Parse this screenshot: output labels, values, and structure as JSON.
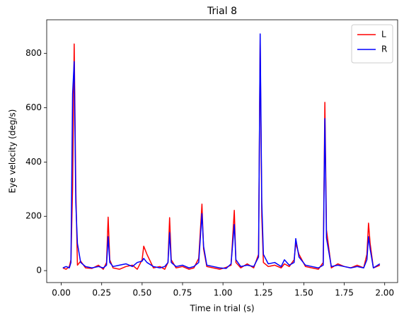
{
  "chart_data": {
    "type": "line",
    "title": "Trial 8",
    "x_label": "Time in trial (s)",
    "y_label": "Eye velocity (deg/s)",
    "x": [
      0.01,
      0.03,
      0.05,
      0.06,
      0.07,
      0.08,
      0.09,
      0.1,
      0.12,
      0.15,
      0.19,
      0.23,
      0.26,
      0.28,
      0.29,
      0.3,
      0.32,
      0.36,
      0.4,
      0.44,
      0.47,
      0.5,
      0.51,
      0.53,
      0.57,
      0.61,
      0.64,
      0.66,
      0.67,
      0.68,
      0.71,
      0.75,
      0.79,
      0.82,
      0.85,
      0.87,
      0.88,
      0.9,
      0.94,
      0.98,
      1.02,
      1.05,
      1.07,
      1.08,
      1.11,
      1.15,
      1.19,
      1.22,
      1.23,
      1.24,
      1.25,
      1.28,
      1.32,
      1.36,
      1.38,
      1.41,
      1.44,
      1.45,
      1.47,
      1.51,
      1.55,
      1.59,
      1.62,
      1.63,
      1.64,
      1.67,
      1.71,
      1.75,
      1.79,
      1.83,
      1.87,
      1.89,
      1.9,
      1.91,
      1.93,
      1.97
    ],
    "series": [
      {
        "name": "L",
        "color": "#ff0000",
        "values": [
          10,
          5,
          15,
          40,
          300,
          835,
          300,
          20,
          35,
          10,
          8,
          20,
          5,
          30,
          197,
          40,
          10,
          5,
          15,
          20,
          5,
          40,
          90,
          60,
          10,
          15,
          5,
          30,
          195,
          40,
          10,
          15,
          5,
          10,
          45,
          245,
          80,
          15,
          10,
          5,
          12,
          20,
          222,
          30,
          10,
          25,
          10,
          60,
          850,
          200,
          30,
          15,
          20,
          10,
          25,
          15,
          40,
          100,
          60,
          15,
          10,
          5,
          30,
          620,
          150,
          10,
          25,
          15,
          10,
          20,
          10,
          60,
          175,
          100,
          10,
          20
        ]
      },
      {
        "name": "R",
        "color": "#0000ff",
        "values": [
          10,
          15,
          10,
          30,
          650,
          770,
          250,
          100,
          30,
          15,
          10,
          15,
          10,
          20,
          125,
          30,
          15,
          20,
          25,
          15,
          30,
          35,
          45,
          30,
          15,
          10,
          15,
          30,
          140,
          30,
          15,
          20,
          10,
          15,
          30,
          210,
          90,
          20,
          15,
          10,
          8,
          25,
          170,
          40,
          15,
          20,
          15,
          50,
          872,
          250,
          60,
          25,
          30,
          15,
          40,
          20,
          30,
          118,
          50,
          20,
          15,
          10,
          20,
          560,
          120,
          15,
          20,
          15,
          10,
          15,
          10,
          40,
          125,
          80,
          10,
          25
        ]
      }
    ],
    "xlim": [
      -0.09,
      2.08
    ],
    "ylim": [
      -44,
      924
    ],
    "xticks": [
      {
        "value": 0,
        "label": "0.00"
      },
      {
        "value": 0.25,
        "label": "0.25"
      },
      {
        "value": 0.5,
        "label": "0.50"
      },
      {
        "value": 0.75,
        "label": "0.75"
      },
      {
        "value": 1,
        "label": "1.00"
      },
      {
        "value": 1.25,
        "label": "1.25"
      },
      {
        "value": 1.5,
        "label": "1.50"
      },
      {
        "value": 1.75,
        "label": "1.75"
      },
      {
        "value": 2,
        "label": "2.00"
      }
    ],
    "yticks": [
      0,
      200,
      400,
      600,
      800
    ],
    "legend": "upper right",
    "grid": false
  }
}
